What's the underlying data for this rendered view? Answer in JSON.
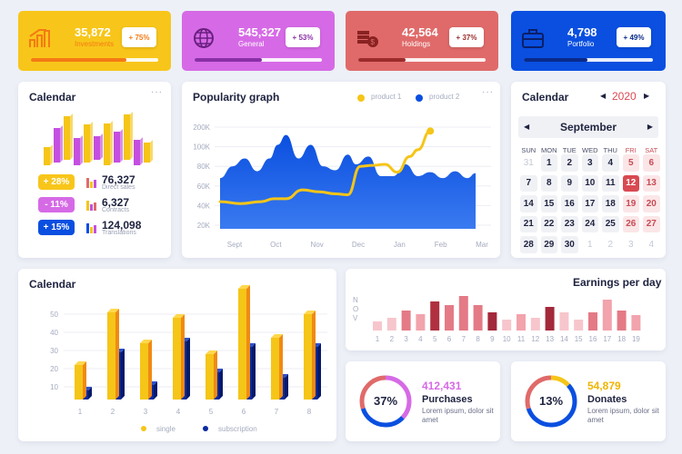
{
  "stats": [
    {
      "value": "35,872",
      "label": "Investments",
      "badge": "+ 75%",
      "icon": "chart-arrow-icon",
      "bg": "#f8c61a",
      "fill": "#f47a13",
      "text": "#fff",
      "label_color": "#f47a13",
      "progress": 0.75
    },
    {
      "value": "545,327",
      "label": "General",
      "badge": "+ 53%",
      "icon": "globe-icon",
      "bg": "#d66ae6",
      "fill": "#8a2fa6",
      "text": "#fff",
      "label_color": "#fff",
      "progress": 0.53
    },
    {
      "value": "42,564",
      "label": "Holdings",
      "badge": "+ 37%",
      "icon": "coins-icon",
      "bg": "#e06a6a",
      "fill": "#9c2c2c",
      "text": "#fff",
      "label_color": "#fff",
      "progress": 0.37
    },
    {
      "value": "4,798",
      "label": "Portfolio",
      "badge": "+ 49%",
      "icon": "briefcase-icon",
      "bg": "#0a4fe0",
      "fill": "#0a2a8a",
      "text": "#fff",
      "label_color": "#fff",
      "progress": 0.49
    }
  ],
  "calendar_card": {
    "title": "Calendar",
    "rows": [
      {
        "badge": "+ 28%",
        "badge_color": "#f8c61a",
        "value": "76,327",
        "label": "Direct sales"
      },
      {
        "badge": "- 11%",
        "badge_color": "#d66ae6",
        "value": "6,327",
        "label": "Contracts"
      },
      {
        "badge": "+ 15%",
        "badge_color": "#0a4fe0",
        "value": "124,098",
        "label": "Translations"
      }
    ]
  },
  "popularity": {
    "title": "Popularity graph",
    "legend": [
      "product 1",
      "product 2"
    ],
    "y_ticks": [
      "200K",
      "100K",
      "80K",
      "60K",
      "40K",
      "20K"
    ],
    "x_ticks": [
      "Sept",
      "Oct",
      "Nov",
      "Dec",
      "Jan",
      "Feb",
      "Mar"
    ]
  },
  "month_calendar": {
    "title": "Calendar",
    "year": "2020",
    "month": "September",
    "weekdays": [
      "SUN",
      "MON",
      "TUE",
      "WED",
      "THU",
      "FRI",
      "SAT"
    ],
    "weeks": [
      [
        "31",
        "1",
        "2",
        "3",
        "4",
        "5",
        "6"
      ],
      [
        "7",
        "8",
        "9",
        "10",
        "11",
        "12",
        "13"
      ],
      [
        "14",
        "15",
        "16",
        "17",
        "18",
        "19",
        "20"
      ],
      [
        "21",
        "22",
        "23",
        "24",
        "25",
        "26",
        "27"
      ],
      [
        "28",
        "29",
        "30",
        "1",
        "2",
        "3",
        "4"
      ]
    ],
    "selected": "12"
  },
  "bar_card": {
    "title": "Calendar",
    "y_ticks": [
      "50",
      "40",
      "30",
      "20",
      "10"
    ],
    "legend": [
      "single",
      "subscription"
    ]
  },
  "earnings": {
    "title": "Earnings per day",
    "side_label": "NOV"
  },
  "donuts": [
    {
      "percent": "37%",
      "value": "412,431",
      "label": "Purchases",
      "sub": "Lorem ipsum, dolor sit amet",
      "accent": "#d66ae6"
    },
    {
      "percent": "13%",
      "value": "54,879",
      "label": "Donates",
      "sub": "Lorem ipsum, dolor sit amet",
      "accent": "#f0b400"
    }
  ],
  "chart_data": [
    {
      "type": "area",
      "title": "Popularity graph",
      "categories": [
        "Sept",
        "Oct",
        "Nov",
        "Dec",
        "Jan",
        "Feb",
        "Mar"
      ],
      "y_ticks": [
        "20K",
        "40K",
        "60K",
        "80K",
        "100K",
        "200K"
      ],
      "series": [
        {
          "name": "product 2",
          "x": [
            0,
            0.3,
            0.6,
            0.9,
            1.2,
            1.4,
            1.6,
            1.9,
            2.2,
            2.5,
            2.8,
            3.1,
            3.3,
            3.6,
            3.9,
            4.2,
            4.5,
            4.8,
            5.1,
            5.4,
            5.7,
            6,
            6.2
          ],
          "y": [
            48,
            60,
            68,
            55,
            68,
            82,
            92,
            68,
            82,
            60,
            56,
            72,
            62,
            70,
            50,
            50,
            62,
            50,
            54,
            48,
            55,
            48,
            53
          ]
        },
        {
          "name": "product 1",
          "x": [
            0,
            0.5,
            1,
            1.3,
            1.6,
            2,
            2.4,
            2.8,
            3.1,
            3.4,
            3.7,
            4,
            4.3,
            4.6,
            4.8,
            5.1
          ],
          "y": [
            24,
            22,
            24,
            27,
            27,
            36,
            34,
            32,
            31,
            60,
            61,
            62,
            54,
            70,
            77,
            96
          ]
        }
      ]
    },
    {
      "type": "bar",
      "title": "Calendar",
      "categories": [
        "1",
        "2",
        "3",
        "4",
        "5",
        "6",
        "7",
        "8"
      ],
      "ylim": [
        0,
        60
      ],
      "series": [
        {
          "name": "single",
          "values": [
            19,
            48,
            31,
            45,
            25,
            61,
            34,
            47
          ]
        },
        {
          "name": "subscription",
          "values": [
            5,
            26,
            8,
            32,
            15,
            29,
            12,
            29
          ]
        }
      ]
    },
    {
      "type": "bar",
      "title": "Earnings per day",
      "categories": [
        "1",
        "2",
        "3",
        "4",
        "5",
        "6",
        "7",
        "8",
        "9",
        "10",
        "11",
        "12",
        "13",
        "14",
        "15",
        "16",
        "17",
        "18",
        "19"
      ],
      "values": [
        10,
        14,
        22,
        18,
        32,
        28,
        38,
        28,
        20,
        12,
        18,
        14,
        26,
        20,
        12,
        20,
        34,
        22,
        17
      ]
    },
    {
      "type": "pie",
      "title": "",
      "labels": [
        "Purchases"
      ],
      "values": [
        37
      ]
    },
    {
      "type": "pie",
      "title": "",
      "labels": [
        "Donates"
      ],
      "values": [
        13
      ]
    }
  ]
}
